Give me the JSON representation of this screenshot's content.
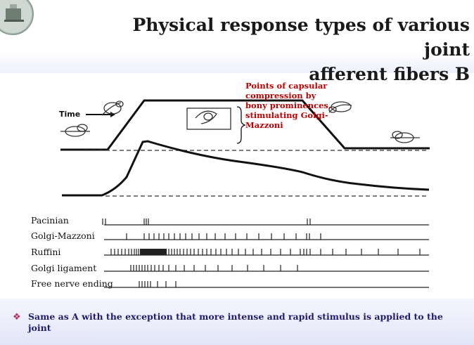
{
  "title_line1": "Physical response types of various joint",
  "title_line2": "afferent fibers B",
  "figure": {
    "time_label": "Time",
    "annotation": "Points of capsular compression by bony prominences, stimulating Golgi-Mazzoni",
    "rows": [
      {
        "label": "Pacinian",
        "icon": "spike-train"
      },
      {
        "label": "Golgi-Mazzoni",
        "icon": "spike-train"
      },
      {
        "label": "Ruffini",
        "icon": "spike-train"
      },
      {
        "label": "Golgi ligament",
        "icon": "spike-train"
      },
      {
        "label": "Free nerve ending",
        "icon": "spike-train"
      }
    ]
  },
  "bullet_text": "Same as A with the exception that more intense and rapid stimulus is applied to the joint",
  "colors": {
    "title": "#1a1a1a",
    "annotation": "#c00000",
    "bullet": "#1d1d70"
  }
}
